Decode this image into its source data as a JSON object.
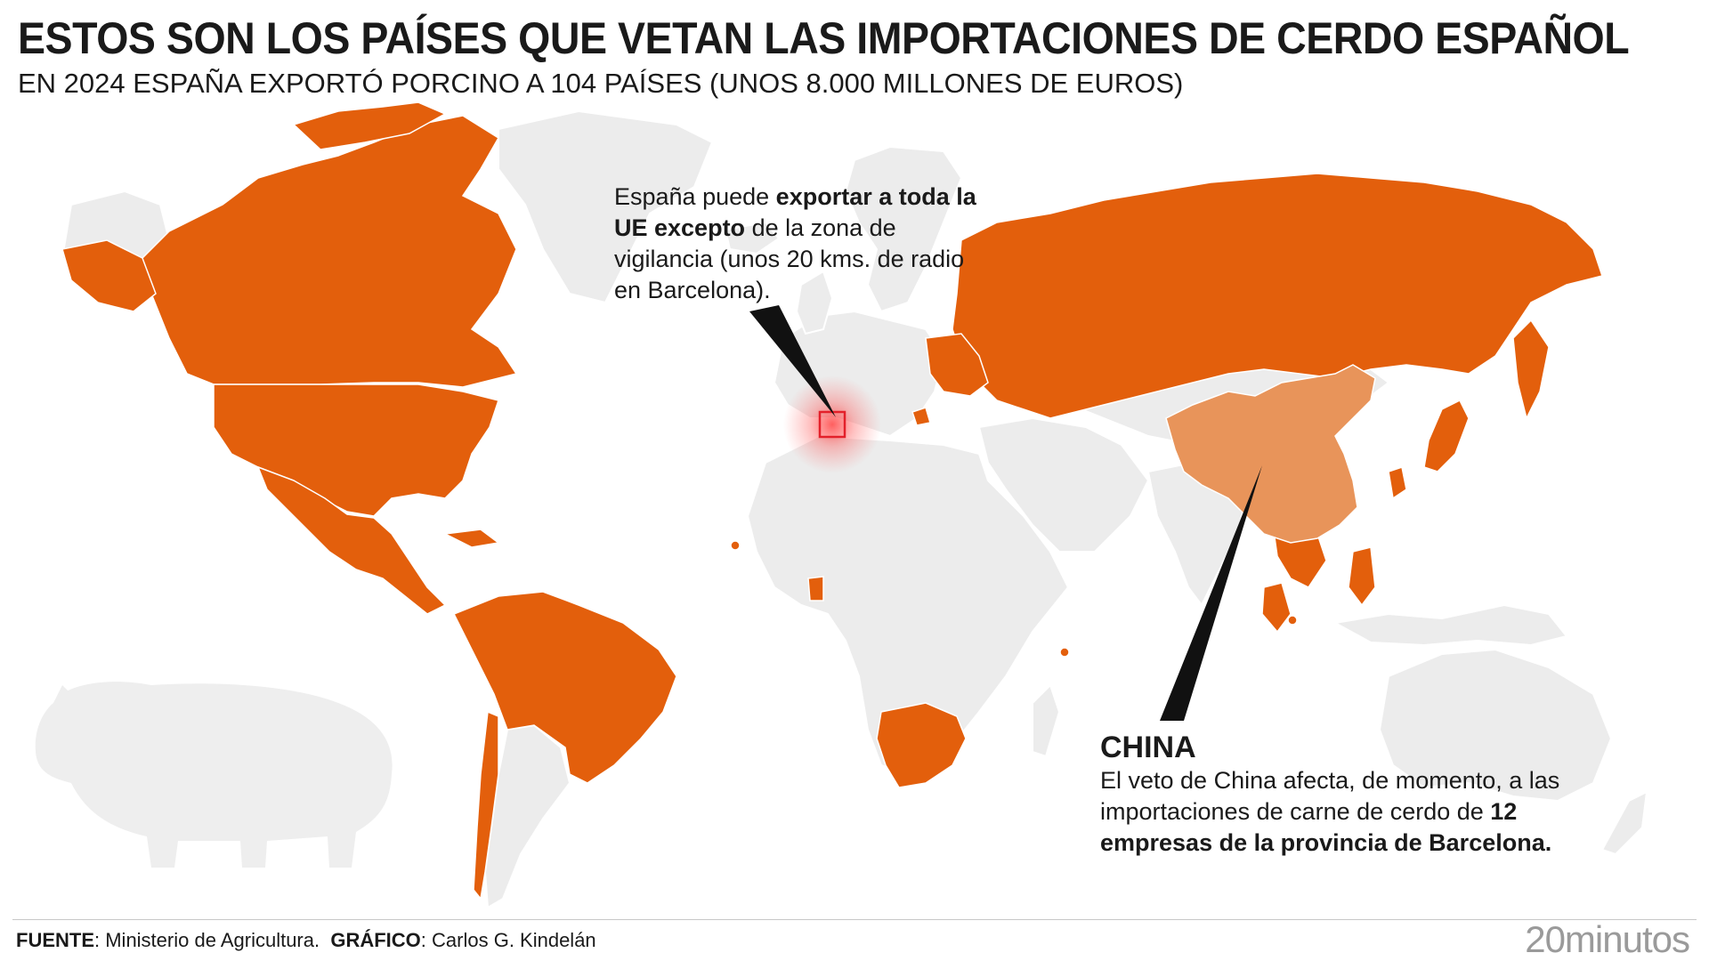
{
  "title": "ESTOS SON LOS PAÍSES QUE VETAN LAS IMPORTACIONES DE CERDO ESPAÑOL",
  "subtitle": "EN 2024 ESPAÑA EXPORTÓ PORCINO A 104 PAÍSES (UNOS 8.000 MILLONES DE EUROS)",
  "colors": {
    "veto_countries": "#e35f0c",
    "china": "#e8945a",
    "other_countries": "#ececec",
    "borders": "#ffffff",
    "barcelona_marker": "#e3202a",
    "pointer": "#111111"
  },
  "eu_callout": {
    "part1": "España puede ",
    "bold1": "exportar a toda la UE excepto",
    "part2": " de la zona de vigilancia (unos 20 kms. de radio en Barcelona)."
  },
  "china_callout": {
    "title": "CHINA",
    "part1": "El veto de China afecta, de momento, a las importaciones de carne de cerdo de ",
    "bold1": "12 empresas de la provincia de Barcelona."
  },
  "footer": {
    "source_label": "FUENTE",
    "source_value": ": Ministerio de Agricultura.",
    "graphic_label": "GRÁFICO",
    "graphic_value": ": Carlos G. Kindelán",
    "logo": "20minutos"
  },
  "icons": {
    "watermark": "pig-silhouette-icon",
    "barcelona": "surveillance-zone-marker-icon"
  }
}
